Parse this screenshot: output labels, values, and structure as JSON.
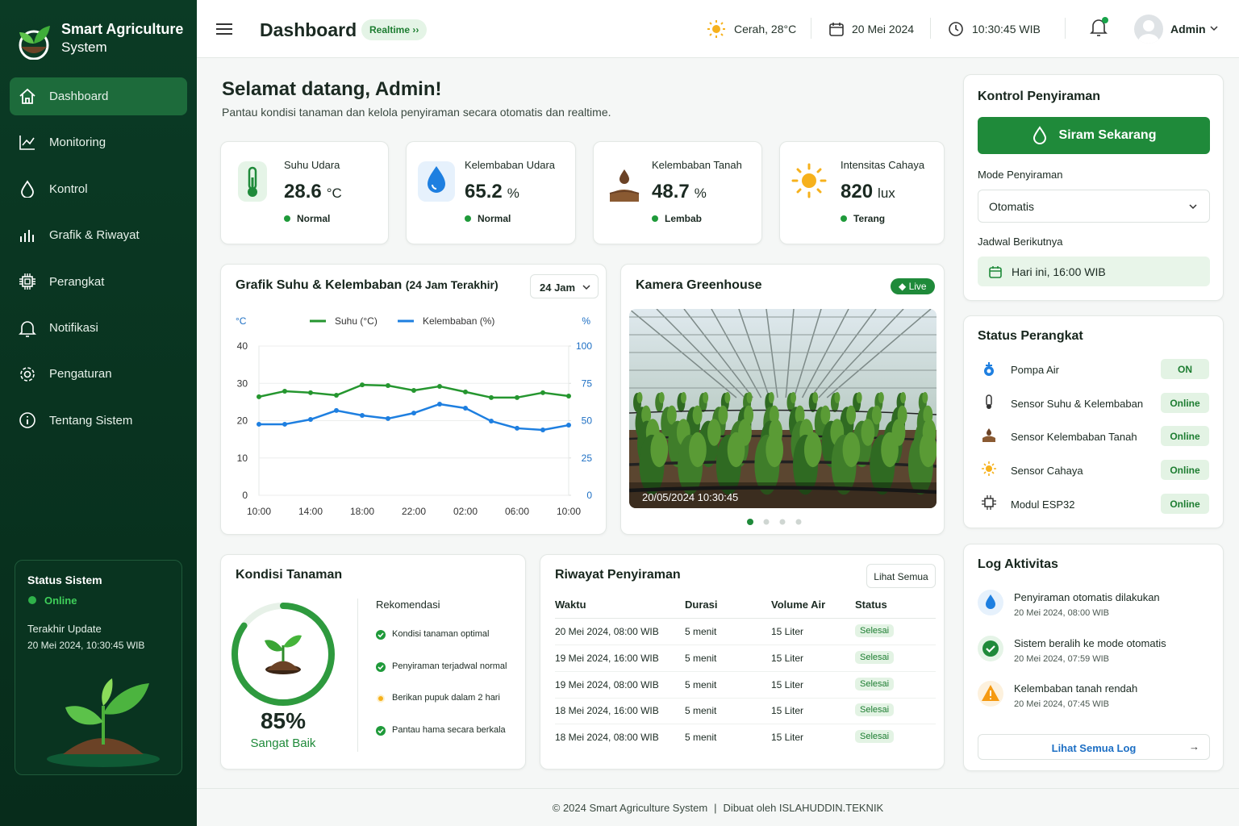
{
  "sidebar": {
    "brand": [
      "Smart Agriculture",
      "System"
    ],
    "nav": [
      "Dashboard",
      "Monitoring",
      "Kontrol",
      "Grafik & Riwayat",
      "Perangkat",
      "Notifikasi",
      "Pengaturan",
      "Tentang Sistem"
    ],
    "status": {
      "title": "Status Sistem",
      "state": "Online",
      "update_label": "Terakhir Update",
      "update": "20 Mei 2024, 10:30:45 WIB"
    }
  },
  "header": {
    "title": "Dashboard",
    "badge": "Realtime",
    "weather": "Cerah, 28°C",
    "date": "20 Mei 2024",
    "time": "10:30:45 WIB",
    "user": "Admin"
  },
  "welcome": {
    "title": "Selamat datang, Admin!",
    "subtitle": "Pantau kondisi tanaman dan kelola penyiraman secara otomatis dan realtime."
  },
  "stats": [
    {
      "label": "Suhu Udara",
      "value": "28.6",
      "unit": "°C",
      "status": "Normal"
    },
    {
      "label": "Kelembaban Udara",
      "value": "65.2",
      "unit": "%",
      "status": "Normal"
    },
    {
      "label": "Kelembaban Tanah",
      "value": "48.7",
      "unit": "%",
      "status": "Lembab"
    },
    {
      "label": "Intensitas Cahaya",
      "value": "820",
      "unit": "lux",
      "status": "Terang"
    }
  ],
  "chart_data": {
    "type": "line",
    "title": "Grafik Suhu & Kelembaban",
    "subtitle": "(24 Jam Terakhir)",
    "range": "24 Jam",
    "y_label": "°C",
    "y2_label": "%",
    "categories": [
      "10:00",
      null,
      "14:00",
      null,
      "18:00",
      null,
      "22:00",
      null,
      "02:00",
      null,
      "06:00",
      null,
      "10:00"
    ],
    "series": [
      {
        "name": "Suhu (°C)",
        "color": "#25962f",
        "values": [
          26.4,
          27.9,
          27.5,
          26.8,
          29.6,
          29.4,
          28.1,
          29.2,
          27.7,
          26.2,
          26.2,
          27.5,
          26.6
        ]
      },
      {
        "name": "Kelembaban (%)",
        "color": "#1e7fe0",
        "axis": "y2",
        "values": [
          47.6,
          47.6,
          50.8,
          56.8,
          53.5,
          51.4,
          55.1,
          61.1,
          58.4,
          49.7,
          44.9,
          43.8,
          47.0
        ]
      }
    ],
    "ylim": [
      0,
      40
    ],
    "yticks": [
      0,
      10,
      20,
      30,
      40
    ],
    "y2lim": [
      0,
      100
    ],
    "y2ticks": [
      0,
      25,
      50,
      75,
      100
    ],
    "grid": true
  },
  "camera": {
    "title": "Kamera Greenhouse",
    "badge": "Live",
    "timestamp": "20/05/2024 10:30:45"
  },
  "control": {
    "title": "Kontrol Penyiraman",
    "button": "Siram Sekarang",
    "mode_label": "Mode Penyiraman",
    "mode": "Otomatis",
    "schedule_label": "Jadwal Berikutnya",
    "schedule": "Hari ini, 16:00 WIB"
  },
  "devices": {
    "title": "Status Perangkat",
    "items": [
      {
        "name": "Pompa Air",
        "status": "ON"
      },
      {
        "name": "Sensor Suhu & Kelembaban",
        "status": "Online"
      },
      {
        "name": "Sensor Kelembaban Tanah",
        "status": "Online"
      },
      {
        "name": "Sensor Cahaya",
        "status": "Online"
      },
      {
        "name": "Modul ESP32",
        "status": "Online"
      }
    ]
  },
  "plant": {
    "title": "Kondisi Tanaman",
    "score": 85,
    "score_label": "85%",
    "status": "Sangat Baik",
    "rec_title": "Rekomendasi",
    "recs": [
      "Kondisi tanaman optimal",
      "Penyiraman terjadwal normal",
      "Berikan pupuk dalam 2 hari",
      "Pantau hama secara berkala"
    ]
  },
  "history": {
    "title": "Riwayat Penyiraman",
    "button": "Lihat Semua",
    "headers": [
      "Waktu",
      "Durasi",
      "Volume Air",
      "Status"
    ],
    "rows": [
      [
        "20 Mei 2024, 08:00 WIB",
        "5 menit",
        "15 Liter",
        "Selesai"
      ],
      [
        "19 Mei 2024, 16:00 WIB",
        "5 menit",
        "15 Liter",
        "Selesai"
      ],
      [
        "19 Mei 2024, 08:00 WIB",
        "5 menit",
        "15 Liter",
        "Selesai"
      ],
      [
        "18 Mei 2024, 16:00 WIB",
        "5 menit",
        "15 Liter",
        "Selesai"
      ],
      [
        "18 Mei 2024, 08:00 WIB",
        "5 menit",
        "15 Liter",
        "Selesai"
      ]
    ]
  },
  "log": {
    "title": "Log Aktivitas",
    "button": "Lihat Semua Log",
    "items": [
      {
        "text": "Penyiraman otomatis dilakukan",
        "time": "20 Mei 2024, 08:00 WIB"
      },
      {
        "text": "Sistem beralih ke mode otomatis",
        "time": "20 Mei 2024, 07:59 WIB"
      },
      {
        "text": "Kelembaban tanah rendah",
        "time": "20 Mei 2024, 07:45 WIB"
      }
    ]
  },
  "footer": {
    "copyright": "© 2024 Smart Agriculture System",
    "credit": "Dibuat oleh ISLAHUDDIN.TEKNIK"
  }
}
